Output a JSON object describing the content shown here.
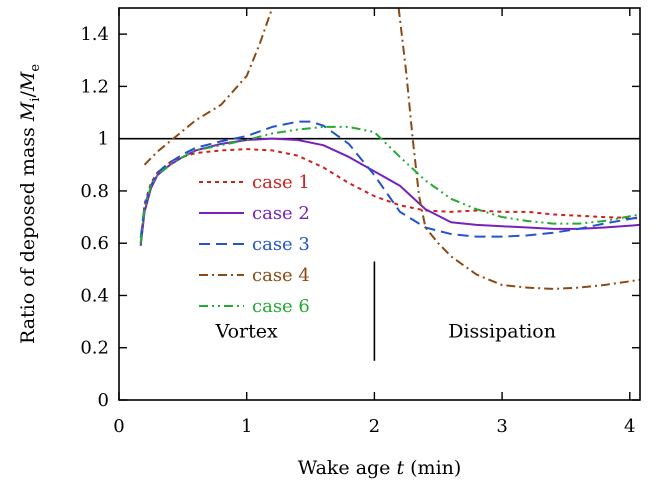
{
  "chart_data": {
    "type": "line",
    "xlabel": "Wake age t (min)",
    "xlabel_parts": [
      "Wake age ",
      "t",
      " (min)"
    ],
    "ylabel": "Ratio of deposed mass M_i/M_e",
    "ylabel_parts": [
      "Ratio of deposed mass ",
      "M",
      "i",
      "/",
      "M",
      "e"
    ],
    "xlim": [
      0,
      4.08
    ],
    "ylim": [
      0,
      1.5
    ],
    "xticks": [
      0,
      1,
      2,
      3,
      4
    ],
    "xtick_labels": [
      "0",
      "1",
      "2",
      "3",
      "4"
    ],
    "yticks": [
      0,
      0.2,
      0.4,
      0.6,
      0.8,
      1,
      1.2,
      1.4
    ],
    "ytick_labels": [
      "0",
      "0.2",
      "0.4",
      "0.6",
      "0.8",
      "1",
      "1.2",
      "1.4"
    ],
    "grid": false,
    "legend_position": "left-center",
    "reference_line": {
      "y": 1.0,
      "color": "#000000"
    },
    "divider": {
      "x": 2.0,
      "y_range": [
        0.15,
        0.53
      ]
    },
    "annotations": [
      {
        "text": "Vortex",
        "x": 1.0,
        "y": 0.24
      },
      {
        "text": "Dissipation",
        "x": 3.0,
        "y": 0.24
      }
    ],
    "series": [
      {
        "name": "case 1",
        "color": "#cc2222",
        "dash": "4,4",
        "points": [
          [
            0.17,
            0.6
          ],
          [
            0.2,
            0.75
          ],
          [
            0.25,
            0.83
          ],
          [
            0.3,
            0.87
          ],
          [
            0.4,
            0.91
          ],
          [
            0.5,
            0.93
          ],
          [
            0.6,
            0.945
          ],
          [
            0.8,
            0.955
          ],
          [
            1.0,
            0.96
          ],
          [
            1.2,
            0.955
          ],
          [
            1.4,
            0.935
          ],
          [
            1.6,
            0.89
          ],
          [
            1.8,
            0.83
          ],
          [
            2.0,
            0.78
          ],
          [
            2.2,
            0.745
          ],
          [
            2.4,
            0.725
          ],
          [
            2.6,
            0.72
          ],
          [
            2.8,
            0.725
          ],
          [
            3.0,
            0.72
          ],
          [
            3.2,
            0.72
          ],
          [
            3.4,
            0.71
          ],
          [
            3.6,
            0.705
          ],
          [
            3.8,
            0.7
          ],
          [
            4.08,
            0.695
          ]
        ]
      },
      {
        "name": "case 2",
        "color": "#7722bb",
        "dash": "",
        "points": [
          [
            0.17,
            0.59
          ],
          [
            0.2,
            0.72
          ],
          [
            0.25,
            0.81
          ],
          [
            0.3,
            0.86
          ],
          [
            0.4,
            0.9
          ],
          [
            0.5,
            0.93
          ],
          [
            0.6,
            0.955
          ],
          [
            0.8,
            0.98
          ],
          [
            1.0,
            0.995
          ],
          [
            1.2,
            1.0
          ],
          [
            1.4,
            0.995
          ],
          [
            1.6,
            0.975
          ],
          [
            1.8,
            0.93
          ],
          [
            2.0,
            0.875
          ],
          [
            2.2,
            0.82
          ],
          [
            2.4,
            0.73
          ],
          [
            2.6,
            0.68
          ],
          [
            2.8,
            0.67
          ],
          [
            3.0,
            0.665
          ],
          [
            3.2,
            0.66
          ],
          [
            3.4,
            0.655
          ],
          [
            3.6,
            0.655
          ],
          [
            3.8,
            0.66
          ],
          [
            4.08,
            0.67
          ]
        ]
      },
      {
        "name": "case 3",
        "color": "#2255cc",
        "dash": "11,6",
        "points": [
          [
            0.17,
            0.62
          ],
          [
            0.2,
            0.74
          ],
          [
            0.25,
            0.82
          ],
          [
            0.3,
            0.87
          ],
          [
            0.4,
            0.91
          ],
          [
            0.5,
            0.94
          ],
          [
            0.6,
            0.965
          ],
          [
            0.8,
            0.99
          ],
          [
            1.0,
            1.01
          ],
          [
            1.2,
            1.045
          ],
          [
            1.4,
            1.065
          ],
          [
            1.5,
            1.065
          ],
          [
            1.6,
            1.05
          ],
          [
            1.8,
            0.98
          ],
          [
            1.9,
            0.92
          ],
          [
            2.0,
            0.86
          ],
          [
            2.2,
            0.72
          ],
          [
            2.4,
            0.66
          ],
          [
            2.6,
            0.635
          ],
          [
            2.8,
            0.625
          ],
          [
            3.0,
            0.625
          ],
          [
            3.2,
            0.63
          ],
          [
            3.4,
            0.64
          ],
          [
            3.6,
            0.655
          ],
          [
            3.8,
            0.675
          ],
          [
            4.08,
            0.7
          ]
        ]
      },
      {
        "name": "case 4",
        "color": "#8b4a14",
        "dash": "9,4,2,4",
        "points": [
          [
            0.2,
            0.9
          ],
          [
            0.3,
            0.95
          ],
          [
            0.4,
            0.99
          ],
          [
            0.5,
            1.03
          ],
          [
            0.6,
            1.07
          ],
          [
            0.8,
            1.13
          ],
          [
            1.0,
            1.24
          ],
          [
            1.1,
            1.36
          ],
          [
            1.2,
            1.5
          ],
          [
            2.19,
            1.5
          ],
          [
            2.25,
            1.25
          ],
          [
            2.3,
            1.0
          ],
          [
            2.35,
            0.78
          ],
          [
            2.4,
            0.66
          ],
          [
            2.5,
            0.6
          ],
          [
            2.6,
            0.55
          ],
          [
            2.8,
            0.48
          ],
          [
            3.0,
            0.44
          ],
          [
            3.2,
            0.43
          ],
          [
            3.4,
            0.425
          ],
          [
            3.6,
            0.43
          ],
          [
            3.8,
            0.44
          ],
          [
            4.08,
            0.46
          ]
        ],
        "segments": [
          [
            0,
            9
          ],
          [
            9,
            23
          ]
        ]
      },
      {
        "name": "case 6",
        "color": "#22aa33",
        "dash": "9,4,2,4,2,4",
        "points": [
          [
            0.17,
            0.6
          ],
          [
            0.2,
            0.73
          ],
          [
            0.25,
            0.82
          ],
          [
            0.3,
            0.86
          ],
          [
            0.4,
            0.9
          ],
          [
            0.5,
            0.93
          ],
          [
            0.6,
            0.955
          ],
          [
            0.8,
            0.975
          ],
          [
            1.0,
            0.995
          ],
          [
            1.2,
            1.02
          ],
          [
            1.4,
            1.035
          ],
          [
            1.6,
            1.045
          ],
          [
            1.8,
            1.045
          ],
          [
            2.0,
            1.025
          ],
          [
            2.2,
            0.93
          ],
          [
            2.4,
            0.84
          ],
          [
            2.6,
            0.77
          ],
          [
            2.8,
            0.73
          ],
          [
            3.0,
            0.7
          ],
          [
            3.2,
            0.685
          ],
          [
            3.4,
            0.675
          ],
          [
            3.6,
            0.675
          ],
          [
            3.8,
            0.685
          ],
          [
            4.08,
            0.71
          ]
        ]
      }
    ]
  }
}
